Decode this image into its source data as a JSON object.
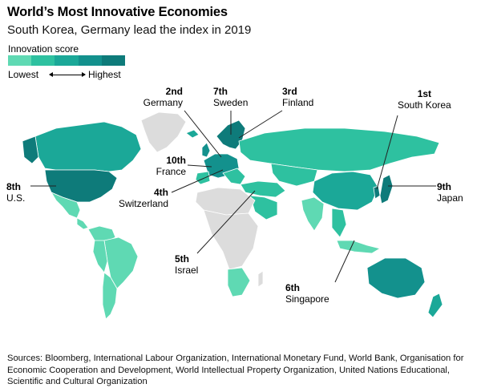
{
  "header": {
    "title": "World’s Most Innovative Economies",
    "subtitle": "South Korea, Germany lead the index in 2019"
  },
  "legend": {
    "title": "Innovation score",
    "low_label": "Lowest",
    "high_label": "Highest",
    "colors": [
      "#5fd9b3",
      "#2ec1a0",
      "#1ba898",
      "#13918d",
      "#0e7b7a"
    ]
  },
  "colors": {
    "no_data": "#dcdcdc",
    "leader_line": "#222222"
  },
  "rankings": [
    {
      "rank": "1st",
      "country": "South Korea"
    },
    {
      "rank": "2nd",
      "country": "Germany"
    },
    {
      "rank": "3rd",
      "country": "Finland"
    },
    {
      "rank": "4th",
      "country": "Switzerland"
    },
    {
      "rank": "5th",
      "country": "Israel"
    },
    {
      "rank": "6th",
      "country": "Singapore"
    },
    {
      "rank": "7th",
      "country": "Sweden"
    },
    {
      "rank": "8th",
      "country": "U.S."
    },
    {
      "rank": "9th",
      "country": "Japan"
    },
    {
      "rank": "10th",
      "country": "France"
    }
  ],
  "sources": "Sources: Bloomberg, International Labour Organization, International Monetary Fund, World Bank, Organisation for Economic Cooperation and Development, World Intellectual Property Organization, United Nations Educational, Scientific and Cultural Organization"
}
